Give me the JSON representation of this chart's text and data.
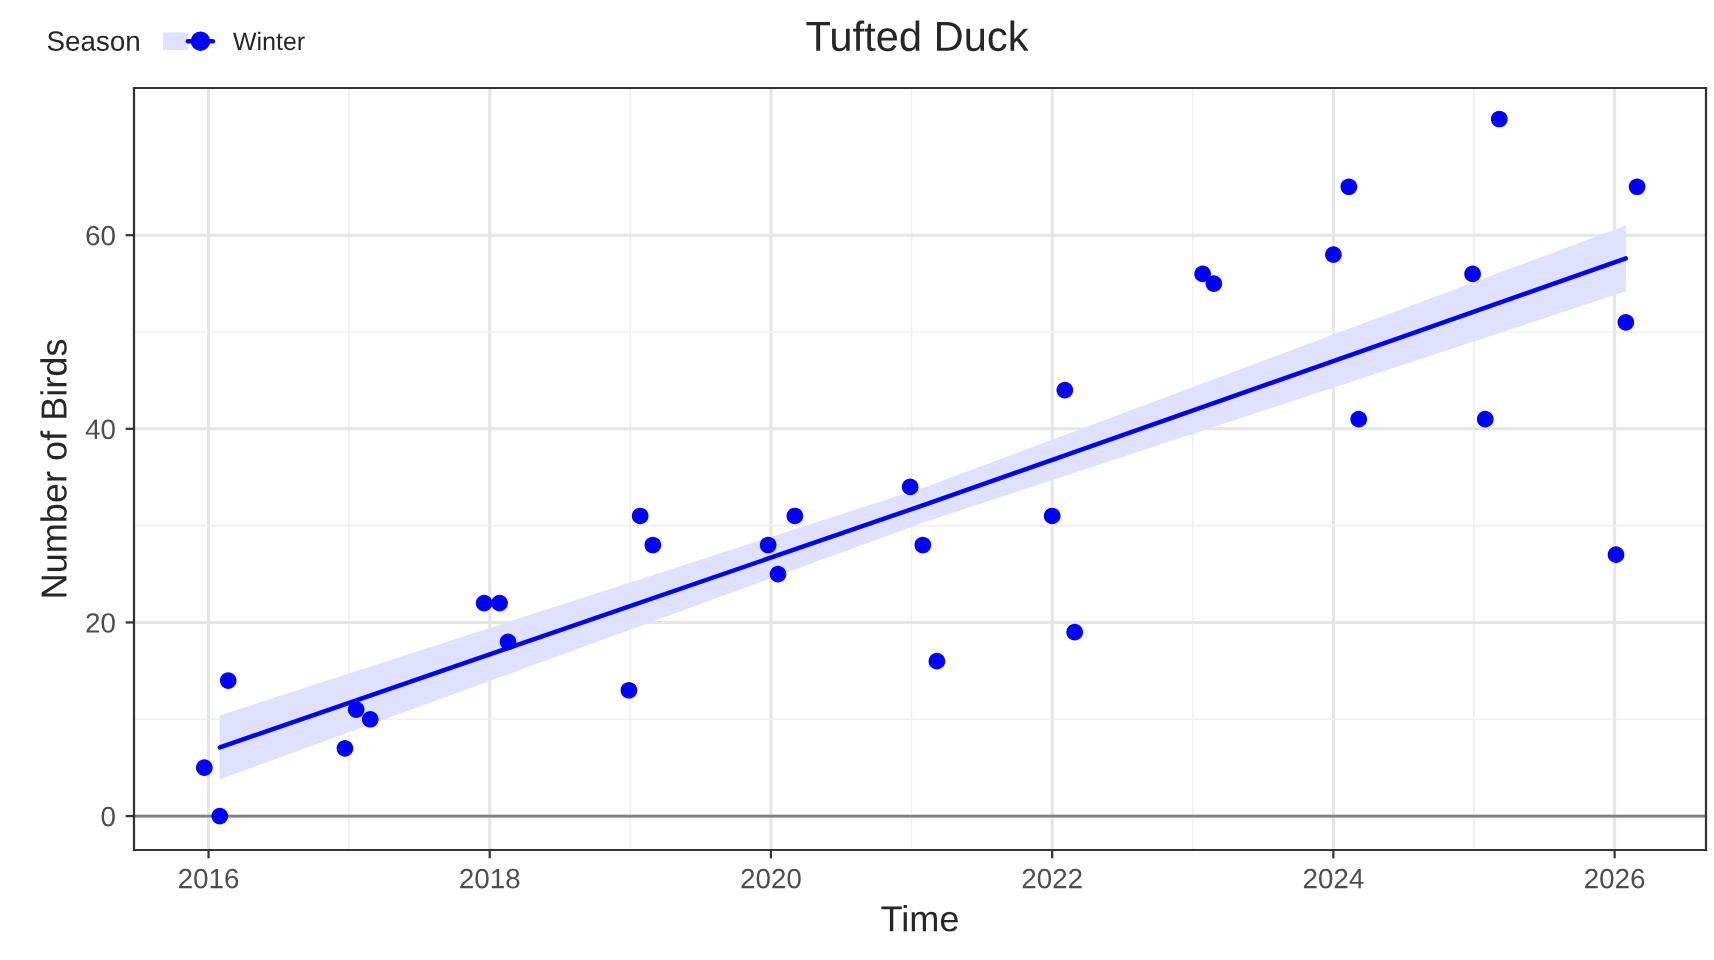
{
  "chart_data": {
    "type": "scatter",
    "title": "Tufted Duck",
    "xlabel": "Time",
    "ylabel": "Number of Birds",
    "legend_title": "Season",
    "series": [
      {
        "name": "Winter",
        "marker": "circle",
        "color": "#0000ff",
        "x": [
          2015.97,
          2016.08,
          2016.14,
          2016.97,
          2017.05,
          2017.15,
          2017.96,
          2018.07,
          2018.13,
          2018.99,
          2019.07,
          2019.16,
          2019.98,
          2020.05,
          2020.17,
          2020.99,
          2021.08,
          2021.18,
          2022.0,
          2022.09,
          2022.16,
          2023.07,
          2023.15,
          2024.0,
          2024.11,
          2024.18,
          2024.99,
          2025.08,
          2025.18,
          2026.01,
          2026.08,
          2026.16
        ],
        "values": [
          5,
          0,
          14,
          7,
          11,
          10,
          22,
          22,
          18,
          13,
          31,
          28,
          28,
          25,
          31,
          34,
          28,
          16,
          31,
          44,
          19,
          56,
          55,
          58,
          65,
          41,
          56,
          41,
          72,
          27,
          51,
          65
        ]
      },
      {
        "type": "line",
        "color": "#0000ff",
        "x": [
          2016.08,
          2021.1,
          2026.08
        ],
        "values": [
          7.1,
          32.2,
          57.6
        ],
        "lower": [
          3.8,
          30.4,
          54.2
        ],
        "upper": [
          10.4,
          34.0,
          61.0
        ]
      }
    ],
    "xlim": [
      2015.47,
      2026.65
    ],
    "xticks": [
      2016,
      2018,
      2020,
      2022,
      2024,
      2026
    ],
    "ylim": [
      -3.5,
      75.2
    ],
    "yticks": [
      0,
      20,
      40,
      60
    ],
    "ref_lines": [
      {
        "axis": "y",
        "value": 0,
        "color": "#7f7f7f"
      }
    ],
    "grid": true,
    "legend": "top left"
  }
}
